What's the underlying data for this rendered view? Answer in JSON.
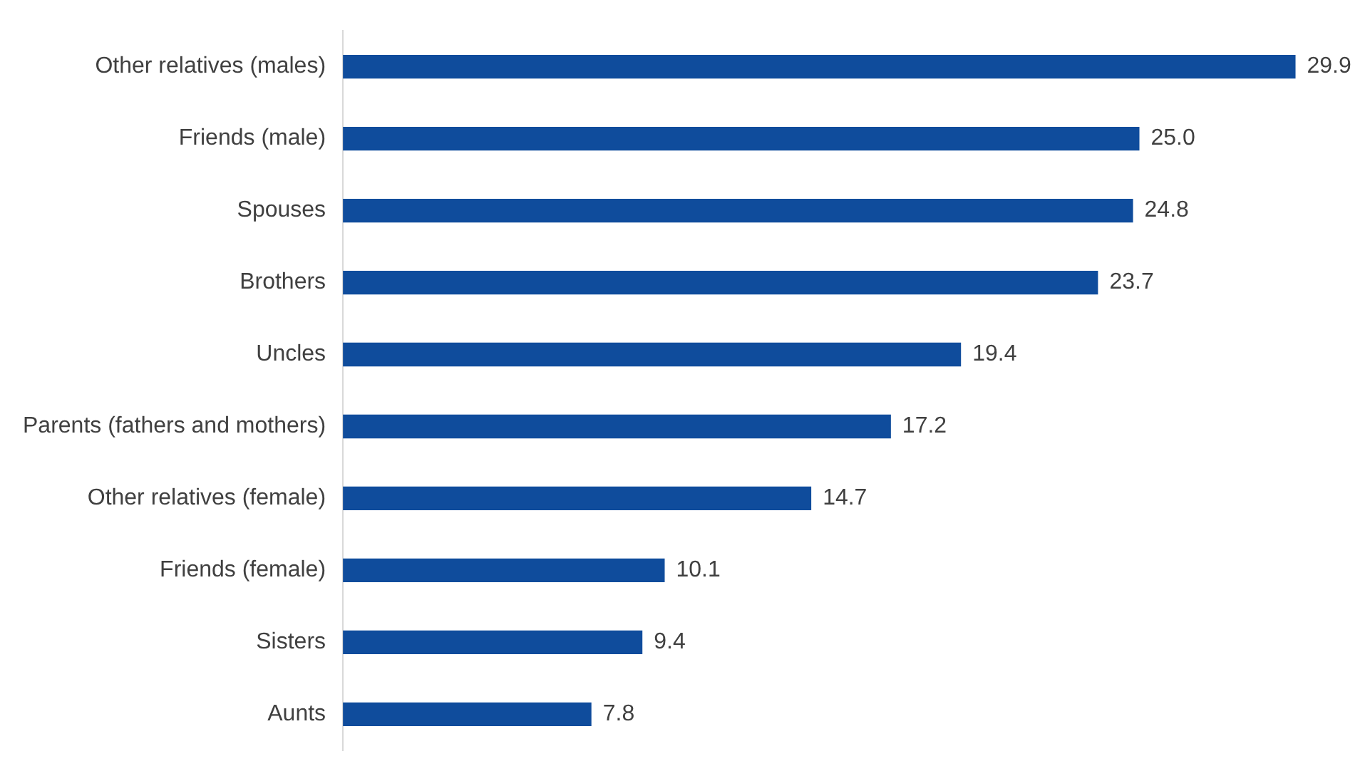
{
  "chart_data": {
    "type": "bar",
    "orientation": "horizontal",
    "categories": [
      "Other relatives (males)",
      "Friends (male)",
      "Spouses",
      "Brothers",
      "Uncles",
      "Parents (fathers and mothers)",
      "Other relatives (female)",
      "Friends (female)",
      "Sisters",
      "Aunts"
    ],
    "values": [
      29.9,
      25.0,
      24.8,
      23.7,
      19.4,
      17.2,
      14.7,
      10.1,
      9.4,
      7.8
    ],
    "value_labels": [
      "29.9",
      "25.0",
      "24.8",
      "23.7",
      "19.4",
      "17.2",
      "14.7",
      "10.1",
      "9.4",
      "7.8"
    ],
    "color": "#0f4c9c",
    "grid": false,
    "legend": false
  }
}
